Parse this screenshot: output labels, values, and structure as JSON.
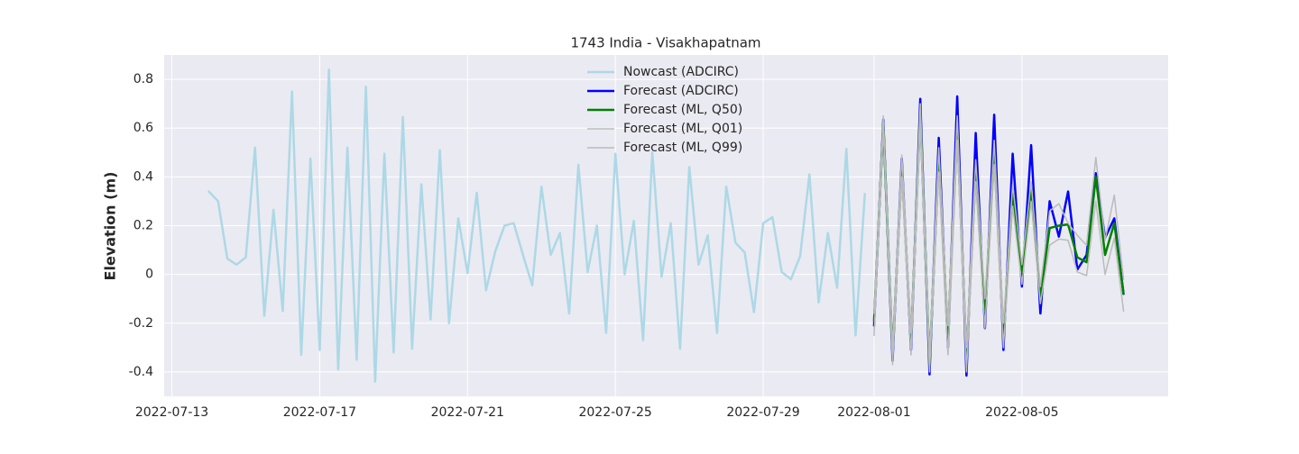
{
  "chart_data": {
    "type": "line",
    "title": "1743 India - Visakhapatnam",
    "y_label": "Elevation (m)",
    "legend": "upper center",
    "grid": true,
    "x": [
      "2022-07-14T00:00",
      "2022-07-14T06:00",
      "2022-07-14T12:00",
      "2022-07-14T18:00",
      "2022-07-15T00:00",
      "2022-07-15T06:00",
      "2022-07-15T12:00",
      "2022-07-15T18:00",
      "2022-07-16T00:00",
      "2022-07-16T06:00",
      "2022-07-16T12:00",
      "2022-07-16T18:00",
      "2022-07-17T00:00",
      "2022-07-17T06:00",
      "2022-07-17T12:00",
      "2022-07-17T18:00",
      "2022-07-18T00:00",
      "2022-07-18T06:00",
      "2022-07-18T12:00",
      "2022-07-18T18:00",
      "2022-07-19T00:00",
      "2022-07-19T06:00",
      "2022-07-19T12:00",
      "2022-07-19T18:00",
      "2022-07-20T00:00",
      "2022-07-20T06:00",
      "2022-07-20T12:00",
      "2022-07-20T18:00",
      "2022-07-21T00:00",
      "2022-07-21T06:00",
      "2022-07-21T12:00",
      "2022-07-21T18:00",
      "2022-07-22T00:00",
      "2022-07-22T06:00",
      "2022-07-22T12:00",
      "2022-07-22T18:00",
      "2022-07-23T00:00",
      "2022-07-23T06:00",
      "2022-07-23T12:00",
      "2022-07-23T18:00",
      "2022-07-24T00:00",
      "2022-07-24T06:00",
      "2022-07-24T12:00",
      "2022-07-24T18:00",
      "2022-07-25T00:00",
      "2022-07-25T06:00",
      "2022-07-25T12:00",
      "2022-07-25T18:00",
      "2022-07-26T00:00",
      "2022-07-26T06:00",
      "2022-07-26T12:00",
      "2022-07-26T18:00",
      "2022-07-27T00:00",
      "2022-07-27T06:00",
      "2022-07-27T12:00",
      "2022-07-27T18:00",
      "2022-07-28T00:00",
      "2022-07-28T06:00",
      "2022-07-28T12:00",
      "2022-07-28T18:00",
      "2022-07-29T00:00",
      "2022-07-29T06:00",
      "2022-07-29T12:00",
      "2022-07-29T18:00",
      "2022-07-30T00:00",
      "2022-07-30T06:00",
      "2022-07-30T12:00",
      "2022-07-30T18:00",
      "2022-07-31T00:00",
      "2022-07-31T06:00",
      "2022-07-31T12:00",
      "2022-07-31T18:00",
      "2022-08-01T00:00",
      "2022-08-01T06:00",
      "2022-08-01T12:00",
      "2022-08-01T18:00",
      "2022-08-02T00:00",
      "2022-08-02T06:00",
      "2022-08-02T12:00",
      "2022-08-02T18:00",
      "2022-08-03T00:00",
      "2022-08-03T06:00",
      "2022-08-03T12:00",
      "2022-08-03T18:00",
      "2022-08-04T00:00",
      "2022-08-04T06:00",
      "2022-08-04T12:00",
      "2022-08-04T18:00",
      "2022-08-05T00:00",
      "2022-08-05T06:00",
      "2022-08-05T12:00",
      "2022-08-05T18:00",
      "2022-08-06T00:00",
      "2022-08-06T06:00",
      "2022-08-06T12:00",
      "2022-08-06T18:00",
      "2022-08-07T00:00",
      "2022-08-07T06:00",
      "2022-08-07T12:00",
      "2022-08-07T18:00"
    ],
    "series": [
      {
        "name": "Nowcast (ADCIRC)",
        "color": "#add8e6",
        "values": [
          0.34,
          0.3,
          0.065,
          0.04,
          0.07,
          0.52,
          -0.17,
          0.265,
          -0.15,
          0.75,
          -0.33,
          0.475,
          -0.31,
          0.84,
          -0.39,
          0.52,
          -0.35,
          0.77,
          -0.44,
          0.495,
          -0.32,
          0.645,
          -0.305,
          0.37,
          -0.185,
          0.51,
          -0.2,
          0.23,
          0.005,
          0.335,
          -0.065,
          0.095,
          0.2,
          0.21,
          0.08,
          -0.045,
          0.36,
          0.08,
          0.17,
          -0.16,
          0.45,
          0.01,
          0.2,
          -0.24,
          0.495,
          0.0,
          0.22,
          -0.27,
          0.5,
          -0.01,
          0.21,
          -0.305,
          0.44,
          0.04,
          0.16,
          -0.24,
          0.36,
          0.13,
          0.09,
          -0.155,
          0.21,
          0.235,
          0.01,
          -0.02,
          0.075,
          0.41,
          -0.115,
          0.17,
          -0.055,
          0.515,
          -0.25,
          0.33,
          null,
          null,
          null,
          null,
          null,
          null,
          null,
          null,
          null,
          null,
          null,
          null,
          null,
          null,
          null,
          null,
          null,
          null,
          null,
          null,
          null,
          null,
          null,
          null,
          null,
          null,
          null,
          null
        ]
      },
      {
        "name": "Forecast (ADCIRC)",
        "color": "#0000ff",
        "values": [
          null,
          null,
          null,
          null,
          null,
          null,
          null,
          null,
          null,
          null,
          null,
          null,
          null,
          null,
          null,
          null,
          null,
          null,
          null,
          null,
          null,
          null,
          null,
          null,
          null,
          null,
          null,
          null,
          null,
          null,
          null,
          null,
          null,
          null,
          null,
          null,
          null,
          null,
          null,
          null,
          null,
          null,
          null,
          null,
          null,
          null,
          null,
          null,
          null,
          null,
          null,
          null,
          null,
          null,
          null,
          null,
          null,
          null,
          null,
          null,
          null,
          null,
          null,
          null,
          null,
          null,
          null,
          null,
          null,
          null,
          null,
          null,
          -0.21,
          0.635,
          -0.355,
          0.475,
          -0.31,
          0.72,
          -0.41,
          0.56,
          -0.3,
          0.73,
          -0.415,
          0.58,
          -0.22,
          0.655,
          -0.31,
          0.495,
          -0.05,
          0.53,
          -0.16,
          0.3,
          0.155,
          0.34,
          0.02,
          0.08,
          0.415,
          0.15,
          0.23,
          -0.08
        ]
      },
      {
        "name": "Forecast (ML, Q50)",
        "color": "#008000",
        "values": [
          null,
          null,
          null,
          null,
          null,
          null,
          null,
          null,
          null,
          null,
          null,
          null,
          null,
          null,
          null,
          null,
          null,
          null,
          null,
          null,
          null,
          null,
          null,
          null,
          null,
          null,
          null,
          null,
          null,
          null,
          null,
          null,
          null,
          null,
          null,
          null,
          null,
          null,
          null,
          null,
          null,
          null,
          null,
          null,
          null,
          null,
          null,
          null,
          null,
          null,
          null,
          null,
          null,
          null,
          null,
          null,
          null,
          null,
          null,
          null,
          null,
          null,
          null,
          null,
          null,
          null,
          null,
          null,
          null,
          null,
          null,
          null,
          -0.19,
          0.62,
          -0.33,
          0.44,
          -0.28,
          0.67,
          -0.37,
          0.47,
          -0.25,
          0.6,
          -0.34,
          0.42,
          -0.15,
          0.5,
          -0.25,
          0.33,
          0.01,
          0.35,
          -0.09,
          0.19,
          0.2,
          0.205,
          0.07,
          0.05,
          0.4,
          0.08,
          0.21,
          -0.08
        ]
      },
      {
        "name": "Forecast (ML, Q01)",
        "color": "#bbbbbb",
        "values": [
          null,
          null,
          null,
          null,
          null,
          null,
          null,
          null,
          null,
          null,
          null,
          null,
          null,
          null,
          null,
          null,
          null,
          null,
          null,
          null,
          null,
          null,
          null,
          null,
          null,
          null,
          null,
          null,
          null,
          null,
          null,
          null,
          null,
          null,
          null,
          null,
          null,
          null,
          null,
          null,
          null,
          null,
          null,
          null,
          null,
          null,
          null,
          null,
          null,
          null,
          null,
          null,
          null,
          null,
          null,
          null,
          null,
          null,
          null,
          null,
          null,
          null,
          null,
          null,
          null,
          null,
          null,
          null,
          null,
          null,
          null,
          null,
          -0.25,
          0.6,
          -0.37,
          0.4,
          -0.33,
          0.62,
          -0.4,
          0.42,
          -0.33,
          0.55,
          -0.4,
          0.38,
          -0.22,
          0.45,
          -0.3,
          0.28,
          -0.04,
          0.3,
          -0.12,
          0.12,
          0.145,
          0.14,
          0.01,
          -0.005,
          0.3,
          0.0,
          0.15,
          -0.15
        ]
      },
      {
        "name": "Forecast (ML, Q99)",
        "color": "#bbbbbb",
        "values": [
          null,
          null,
          null,
          null,
          null,
          null,
          null,
          null,
          null,
          null,
          null,
          null,
          null,
          null,
          null,
          null,
          null,
          null,
          null,
          null,
          null,
          null,
          null,
          null,
          null,
          null,
          null,
          null,
          null,
          null,
          null,
          null,
          null,
          null,
          null,
          null,
          null,
          null,
          null,
          null,
          null,
          null,
          null,
          null,
          null,
          null,
          null,
          null,
          null,
          null,
          null,
          null,
          null,
          null,
          null,
          null,
          null,
          null,
          null,
          null,
          null,
          null,
          null,
          null,
          null,
          null,
          null,
          null,
          null,
          null,
          null,
          null,
          -0.16,
          0.65,
          -0.3,
          0.49,
          -0.24,
          0.7,
          -0.33,
          0.52,
          -0.21,
          0.65,
          -0.3,
          0.47,
          -0.1,
          0.55,
          -0.2,
          0.37,
          0.04,
          0.38,
          -0.05,
          0.26,
          0.29,
          0.21,
          0.16,
          0.12,
          0.48,
          0.14,
          0.325,
          -0.02
        ]
      }
    ],
    "xlim": [
      "2022-07-12T19:00",
      "2022-08-08T23:00"
    ],
    "xticks": [
      "2022-07-13",
      "2022-07-17",
      "2022-07-21",
      "2022-07-25",
      "2022-07-29",
      "2022-08-01",
      "2022-08-05"
    ],
    "ylim": [
      -0.5,
      0.9
    ],
    "yticks": [
      -0.4,
      -0.2,
      0.0,
      0.2,
      0.4,
      0.6,
      0.8
    ]
  }
}
